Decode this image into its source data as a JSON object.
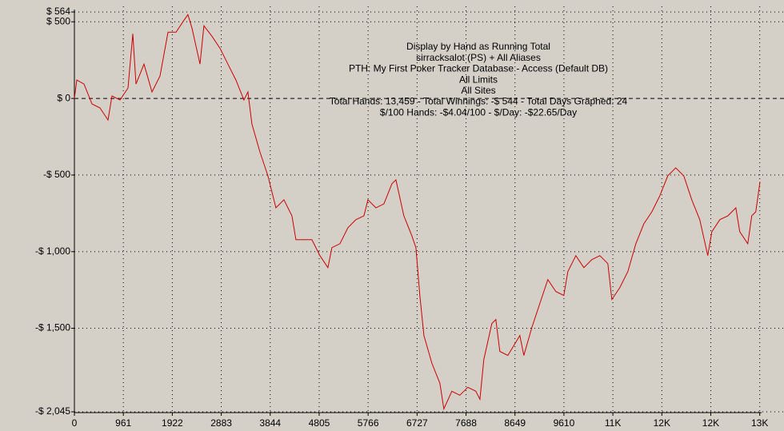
{
  "chart_data": {
    "type": "line",
    "annotations": [
      "Display by Hand as Running Total",
      "sirracksalot (PS) + All Aliases",
      "PTH: My First Poker Tracker Database - Access (Default DB)",
      "All Limits",
      "All Sites",
      "Total Hands: 13,459 - Total Winnings: -$ 544 - Total Days Graphed: 24",
      "$/100 Hands: -$4.04/100 - $/Day: -$22.65/Day"
    ],
    "xlim": [
      0,
      13459
    ],
    "ylim": [
      -2045,
      564
    ],
    "xticks": [
      0,
      961,
      1922,
      2883,
      3844,
      4805,
      5766,
      6727,
      7688,
      8649,
      9610,
      {
        "value": 10571,
        "label": "11K"
      },
      {
        "value": 11532,
        "label": "12K"
      },
      {
        "value": 12493,
        "label": "12K"
      },
      {
        "value": 13454,
        "label": "13K"
      }
    ],
    "yticks": [
      {
        "value": 564,
        "label": "$ 564"
      },
      {
        "value": 500,
        "label": "$ 500"
      },
      {
        "value": 0,
        "label": "$ 0"
      },
      {
        "value": -500,
        "label": "-$ 500"
      },
      {
        "value": -1000,
        "label": "-$ 1,000"
      },
      {
        "value": -1500,
        "label": "-$ 1,500"
      },
      {
        "value": -2045,
        "label": "-$ 2,045"
      }
    ],
    "grid": true,
    "series": [
      {
        "color": "#cc0000",
        "x": [
          0,
          47,
          188,
          345,
          502,
          659,
          738,
          895,
          1052,
          1146,
          1209,
          1366,
          1523,
          1680,
          1837,
          1994,
          2151,
          2229,
          2308,
          2465,
          2543,
          2700,
          2857,
          3014,
          3171,
          3328,
          3407,
          3485,
          3642,
          3799,
          3956,
          4113,
          4270,
          4349,
          4506,
          4663,
          4820,
          4977,
          5055,
          5212,
          5369,
          5526,
          5683,
          5762,
          5919,
          6076,
          6233,
          6311,
          6468,
          6625,
          6704,
          6782,
          6861,
          7018,
          7175,
          7253,
          7410,
          7567,
          7724,
          7881,
          7960,
          8038,
          8195,
          8274,
          8352,
          8509,
          8745,
          8823,
          8980,
          9137,
          9294,
          9451,
          9608,
          9687,
          9844,
          10001,
          10158,
          10315,
          10472,
          10550,
          10707,
          10864,
          11021,
          11178,
          11335,
          11492,
          11649,
          11806,
          11963,
          12120,
          12277,
          12434,
          12513,
          12670,
          12827,
          12984,
          13062,
          13219,
          13298,
          13376,
          13459
        ],
        "values": [
          0,
          120,
          94,
          -36,
          -62,
          -141,
          16,
          -10,
          68,
          422,
          94,
          224,
          42,
          146,
          432,
          432,
          510,
          547,
          458,
          224,
          474,
          406,
          328,
          224,
          120,
          -10,
          42,
          -167,
          -349,
          -505,
          -714,
          -661,
          -766,
          -922,
          -922,
          -922,
          -1026,
          -1104,
          -974,
          -948,
          -844,
          -791,
          -766,
          -661,
          -714,
          -688,
          -557,
          -531,
          -766,
          -896,
          -974,
          -1286,
          -1547,
          -1729,
          -1859,
          -2026,
          -1911,
          -1937,
          -1885,
          -1911,
          -1963,
          -1703,
          -1469,
          -1443,
          -1651,
          -1677,
          -1547,
          -1677,
          -1495,
          -1338,
          -1182,
          -1260,
          -1286,
          -1130,
          -1026,
          -1104,
          -1052,
          -1026,
          -1078,
          -1312,
          -1234,
          -1130,
          -948,
          -818,
          -740,
          -635,
          -505,
          -453,
          -505,
          -661,
          -791,
          -1026,
          -870,
          -791,
          -766,
          -714,
          -870,
          -948,
          -766,
          -740,
          -544
        ]
      }
    ]
  }
}
